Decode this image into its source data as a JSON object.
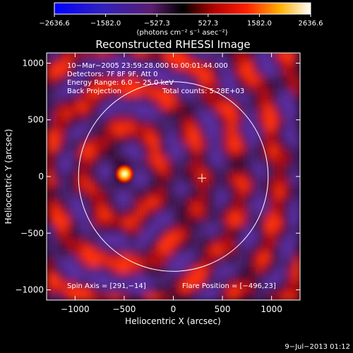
{
  "chart_data": {
    "type": "heatmap",
    "title": "Reconstructed RHESSI Image",
    "xlabel": "Heliocentric X (arcsec)",
    "ylabel": "Heliocentric Y (arcsec)",
    "xlim": [
      -1290,
      1290
    ],
    "ylim": [
      -1090,
      1090
    ],
    "xticks": [
      -1000,
      -500,
      0,
      500,
      1000
    ],
    "yticks": [
      -1000,
      -500,
      0,
      500,
      1000
    ],
    "xtick_labels": [
      "−1000",
      "−500",
      "0",
      "500",
      "1000"
    ],
    "ytick_labels": [
      "−1000",
      "−500",
      "0",
      "500",
      "1000"
    ],
    "colorbar": {
      "min": -2636.6,
      "max": 2636.6,
      "ticks": [
        -2636.6,
        -1582.0,
        -527.3,
        527.3,
        1582.0,
        2636.6
      ],
      "tick_labels": [
        "−2636.6",
        "−1582.0",
        "−527.3",
        "527.3",
        "1582.0",
        "2636.6"
      ],
      "unit_label": "(photons cm⁻² s⁻¹ asec⁻²)"
    },
    "annotations": {
      "time": "10−Mar−2005 23:59:28.000 to 00:01:44.000",
      "detectors": "Detectors: 7F 8F 9F, Att 0",
      "energy": "Energy Range: 6.0 − 25.0 keV",
      "method": "Back Projection",
      "counts": "Total counts: 5.28E+03",
      "spin_axis": "Spin Axis = [291,−14]",
      "flare_position": "Flare Position = [−496,23]"
    },
    "solar_disk": {
      "center": [
        0,
        0
      ],
      "radius_arcsec": 965
    },
    "spin_axis": [
      291,
      -14
    ],
    "flare_position": [
      -496,
      23
    ],
    "bright_source": {
      "x": -496,
      "y": 23,
      "value": 2636.6
    },
    "grid": false
  },
  "footer": {
    "date": "9−Jul−2013 01:12"
  }
}
